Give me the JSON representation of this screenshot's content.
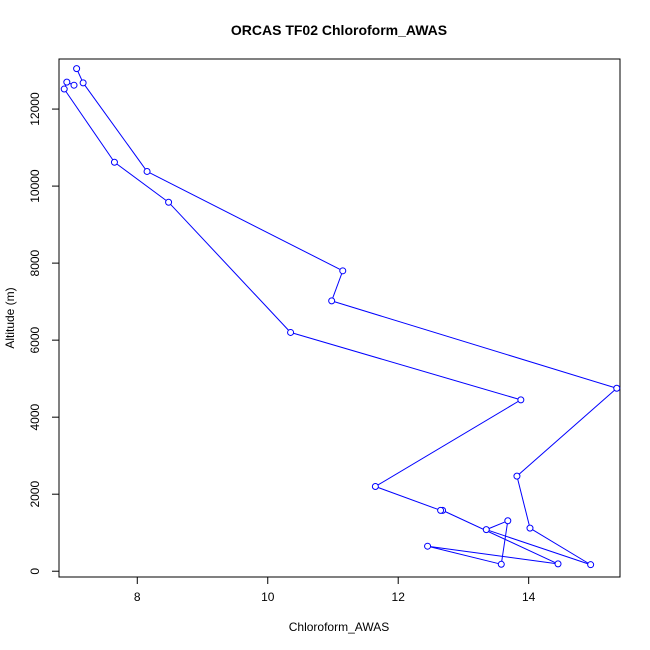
{
  "chart_data": {
    "type": "line",
    "title": "ORCAS TF02 Chloroform_AWAS",
    "xlabel": "Chloroform_AWAS",
    "ylabel": "Altitude (m)",
    "xlim": [
      6.8,
      15.4
    ],
    "ylim": [
      -150,
      13300
    ],
    "xticks": [
      8,
      10,
      12,
      14
    ],
    "yticks": [
      0,
      2000,
      4000,
      6000,
      8000,
      10000,
      12000
    ],
    "grid": false,
    "line_color": "#0000ff",
    "marker": "open-circle",
    "series": [
      {
        "x": [
          7.07,
          7.17,
          8.15,
          11.15,
          10.98,
          15.35,
          13.82,
          14.02,
          14.95,
          13.35,
          13.68,
          13.58,
          12.45,
          14.45,
          12.68,
          12.65,
          11.65,
          13.88,
          10.35,
          8.48,
          7.65,
          6.88,
          6.92,
          7.03
        ],
        "y": [
          13050,
          12680,
          10380,
          7800,
          7020,
          4750,
          2470,
          1120,
          170,
          1080,
          1310,
          180,
          650,
          190,
          1580,
          1580,
          2200,
          4450,
          6200,
          9580,
          10620,
          12520,
          12700,
          12620
        ]
      }
    ]
  }
}
